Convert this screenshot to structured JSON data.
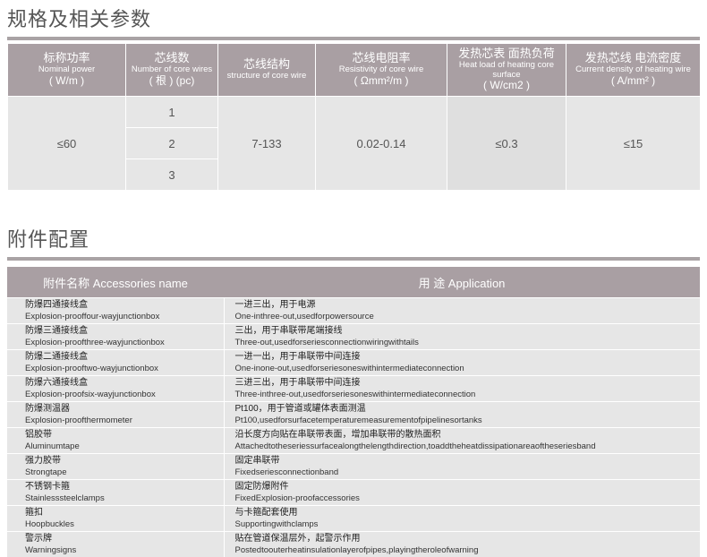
{
  "spec": {
    "title": "规格及相关参数",
    "headers": [
      {
        "cn": "标称功率",
        "en": "Nominal power",
        "unit": "( W/m )"
      },
      {
        "cn": "芯线数",
        "en": "Number of core wires",
        "unit": "( 根 ) (pc)"
      },
      {
        "cn": "芯线结构",
        "en": "structure of core wire",
        "unit": ""
      },
      {
        "cn": "芯线电阻率",
        "en": "Resistivity of core wire",
        "unit": "( Ωmm²/m )"
      },
      {
        "cn": "发热芯表  面热负荷",
        "en": "Heat load of heating core surface",
        "unit": "( W/cm2 )"
      },
      {
        "cn": "发热芯线 电流密度",
        "en": "Current density of heating wire",
        "unit": "( A/mm² )"
      }
    ],
    "values": {
      "power": "≤60",
      "wires": [
        "1",
        "2",
        "3"
      ],
      "structure": "7-133",
      "resistivity": "0.02-0.14",
      "heat_load": "≤0.3",
      "current_density": "≤15"
    }
  },
  "accessories": {
    "title": "附件配置",
    "headers": {
      "name": "附件名称 Accessories name",
      "application": "用  途 Application"
    },
    "rows": [
      {
        "name_cn": "防爆四通接线盒",
        "name_en": "Explosion-prooffour-wayjunctionbox",
        "app_cn": "一进三出，用于电源",
        "app_en": "One-inthree-out,usedforpowersource"
      },
      {
        "name_cn": "防爆三通接线盒",
        "name_en": "Explosion-proofthree-wayjunctionbox",
        "app_cn": "三出，用于串联带尾端接线",
        "app_en": "Three-out,usedforseriesconnectionwiringwithtails"
      },
      {
        "name_cn": "防爆二通接线盒",
        "name_en": "Explosion-prooftwo-wayjunctionbox",
        "app_cn": "一进一出，用于串联带中间连接",
        "app_en": "One-inone-out,usedforseriesoneswithintermediateconnection"
      },
      {
        "name_cn": "防爆六通接线盒",
        "name_en": "Explosion-proofsix-wayjunctionbox",
        "app_cn": "三进三出，用于串联带中间连接",
        "app_en": "Three-inthree-out,usedforseriesoneswithintermediateconnection"
      },
      {
        "name_cn": "防爆测温器",
        "name_en": "Explosion-proofthermometer",
        "app_cn": "Pt100，用于管道或罐体表面测温",
        "app_en": "Pt100,usedforsurfacetemperaturemeasurementofpipelinesortanks"
      },
      {
        "name_cn": "铝胶带",
        "name_en": "Aluminumtape",
        "app_cn": "沿长度方向贴在串联带表面，增加串联带的散热面积",
        "app_en": "Attachedtotheseriessurfacealongthelengthdirection,toaddtheheatdissipationareaoftheseriesband"
      },
      {
        "name_cn": "强力胶带",
        "name_en": "Strongtape",
        "app_cn": "固定串联带",
        "app_en": "Fixedseriesconnectionband"
      },
      {
        "name_cn": "不锈钢卡箍",
        "name_en": "Stainlesssteelclamps",
        "app_cn": "固定防爆附件",
        "app_en": "FixedExplosion-proofaccessories"
      },
      {
        "name_cn": "箍扣",
        "name_en": "Hoopbuckles",
        "app_cn": "与卡箍配套使用",
        "app_en": "Supportingwithclamps"
      },
      {
        "name_cn": "警示牌",
        "name_en": "Warningsigns",
        "app_cn": "贴在管道保温层外，起警示作用",
        "app_en": "Postedtoouterheatinsulationlayerofpipes,playingtheroleofwarning"
      }
    ]
  },
  "colors": {
    "header": "#a99fa3",
    "cell": "#e6e6e6"
  }
}
